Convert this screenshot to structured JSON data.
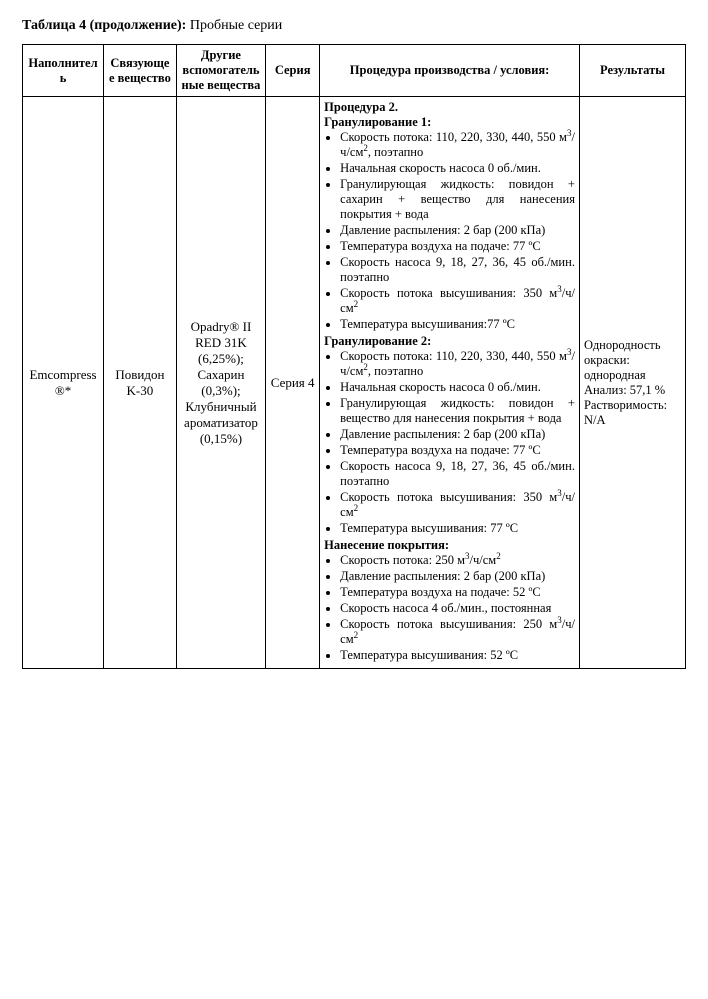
{
  "caption": {
    "bold": "Таблица 4 (продолжение):",
    "rest": " Пробные серии"
  },
  "headers": {
    "filler": "Наполнитель",
    "binder": "Связующее вещество",
    "other": "Другие вспомогательные вещества",
    "series": "Серия",
    "procedure": "Процедура производства / условия:",
    "results": "Результаты"
  },
  "row": {
    "filler": "Emcompress ®*",
    "binder": "Повидон K-30",
    "other_lines": [
      "Opadry® II RED 31K (6,25%);",
      "Сахарин (0,3%);",
      "Клубничный ароматизатор (0,15%)"
    ],
    "series": "Серия 4",
    "results_lines": [
      "Однородность окраски: однородная",
      "Анализ: 57,1 %",
      "Растворимость: N/A"
    ],
    "procedure": {
      "proc_title": "Процедура 2.",
      "g1_title": "Гранулирование 1:",
      "g1_items": [
        "Скорость потока: 110, 220, 330, 440, 550 м³/ч/см², поэтапно",
        "Начальная скорость насоса 0 об./мин.",
        "Гранулирующая жидкость: повидон + сахарин + вещество для нанесения покрытия + вода",
        "Давление распыления: 2 бар (200 кПа)",
        "Температура воздуха на подаче: 77 ºС",
        "Скорость насоса 9, 18, 27, 36, 45 об./мин. поэтапно",
        "Скорость потока высушивания: 350 м³/ч/см²",
        "Температура высушивания:77 ºС"
      ],
      "g2_title": "Гранулирование 2:",
      "g2_items": [
        "Скорость потока: 110, 220, 330, 440, 550 м³/ч/см², поэтапно",
        "Начальная скорость насоса 0 об./мин.",
        "Гранулирующая жидкость: повидон + вещество для нанесения покрытия + вода",
        "Давление распыления: 2 бар (200 кПа)",
        "Температура воздуха на подаче: 77 ºС",
        "Скорость насоса 9, 18, 27, 36, 45 об./мин. поэтапно",
        "Скорость потока высушивания: 350 м³/ч/см²",
        "Температура высушивания: 77 ºС"
      ],
      "coat_title": "Нанесение покрытия:",
      "coat_items": [
        "Скорость потока: 250 м³/ч/см²",
        "Давление распыления: 2 бар (200 кПа)",
        "Температура воздуха на подаче: 52 ºС",
        "Скорость насоса 4 об./мин., постоянная",
        "Скорость потока высушивания: 250 м³/ч/см²",
        "Температура высушивания: 52 ºС"
      ]
    }
  }
}
